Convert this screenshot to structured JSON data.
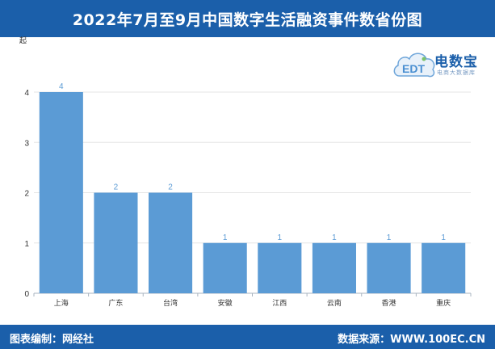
{
  "header": {
    "title": "2022年7月至9月中国数字生活融资事件数省份图"
  },
  "footer": {
    "left": "图表编制：网经社",
    "right": "数据来源：WWW.100EC.CN"
  },
  "logo": {
    "brand": "电数宝",
    "tagline": "电商大数据库",
    "mark": "EDT"
  },
  "colors": {
    "header_bg": "#1b5faa",
    "bar": "#5b9bd5",
    "bar_label": "#5b9bd5",
    "grid": "#e6e6e6"
  },
  "chart_data": {
    "type": "bar",
    "ylabel": "起",
    "categories": [
      "上海",
      "广东",
      "台湾",
      "安徽",
      "江西",
      "云南",
      "香港",
      "重庆"
    ],
    "values": [
      4,
      2,
      2,
      1,
      1,
      1,
      1,
      1
    ],
    "ylim": [
      0,
      4
    ],
    "yticks": [
      0,
      1,
      2,
      3,
      4
    ],
    "grid": true,
    "data_labels": true
  }
}
